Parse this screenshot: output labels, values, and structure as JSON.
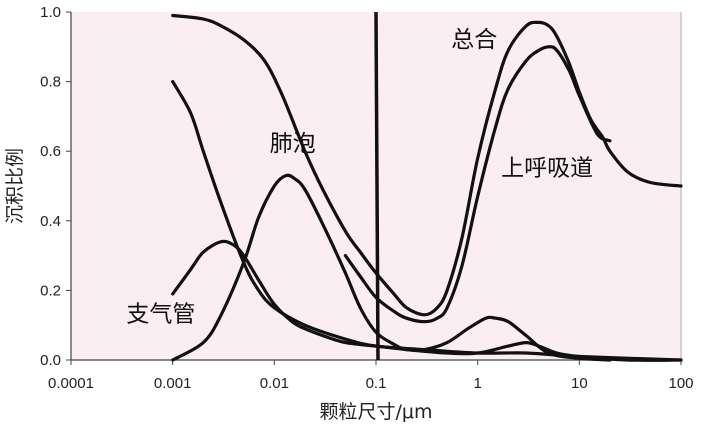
{
  "chart_data": {
    "type": "line",
    "xscale": "log",
    "xlabel": "颗粒尺寸/μm",
    "ylabel": "沉积比例",
    "xlim": [
      0.0001,
      100
    ],
    "ylim": [
      0,
      1.0
    ],
    "xticks": [
      "0.0001",
      "0.001",
      "0.01",
      "0.1",
      "1",
      "10",
      "100"
    ],
    "yticks": [
      "0.0",
      "0.2",
      "0.4",
      "0.6",
      "0.8",
      "1.0"
    ],
    "grid": false,
    "reference_line_x": 0.1,
    "background": "#fbeef2",
    "series": [
      {
        "name": "总合",
        "points": [
          [
            0.001,
            0.99
          ],
          [
            0.002,
            0.98
          ],
          [
            0.003,
            0.96
          ],
          [
            0.005,
            0.92
          ],
          [
            0.008,
            0.86
          ],
          [
            0.012,
            0.76
          ],
          [
            0.02,
            0.6
          ],
          [
            0.03,
            0.49
          ],
          [
            0.05,
            0.37
          ],
          [
            0.07,
            0.31
          ],
          [
            0.1,
            0.25
          ],
          [
            0.15,
            0.19
          ],
          [
            0.2,
            0.15
          ],
          [
            0.3,
            0.13
          ],
          [
            0.4,
            0.15
          ],
          [
            0.5,
            0.2
          ],
          [
            0.7,
            0.35
          ],
          [
            1.0,
            0.58
          ],
          [
            1.5,
            0.78
          ],
          [
            2.0,
            0.89
          ],
          [
            3.0,
            0.96
          ],
          [
            4.0,
            0.97
          ],
          [
            5.0,
            0.96
          ],
          [
            6.0,
            0.93
          ],
          [
            8.0,
            0.85
          ],
          [
            10.0,
            0.77
          ],
          [
            13.0,
            0.69
          ],
          [
            17.0,
            0.64
          ],
          [
            20.0,
            0.6
          ],
          [
            30.0,
            0.54
          ],
          [
            50.0,
            0.51
          ],
          [
            100.0,
            0.5
          ]
        ]
      },
      {
        "name": "上呼吸道",
        "points": [
          [
            0.05,
            0.3
          ],
          [
            0.07,
            0.24
          ],
          [
            0.1,
            0.18
          ],
          [
            0.15,
            0.14
          ],
          [
            0.2,
            0.12
          ],
          [
            0.3,
            0.11
          ],
          [
            0.4,
            0.12
          ],
          [
            0.5,
            0.15
          ],
          [
            0.7,
            0.27
          ],
          [
            1.0,
            0.47
          ],
          [
            1.5,
            0.67
          ],
          [
            2.0,
            0.78
          ],
          [
            3.0,
            0.86
          ],
          [
            4.0,
            0.89
          ],
          [
            5.0,
            0.9
          ],
          [
            6.0,
            0.89
          ],
          [
            8.0,
            0.83
          ],
          [
            10.0,
            0.76
          ],
          [
            15.0,
            0.65
          ],
          [
            20.0,
            0.63
          ]
        ]
      },
      {
        "name": "肺泡",
        "points": [
          [
            0.001,
            0.0
          ],
          [
            0.002,
            0.05
          ],
          [
            0.003,
            0.13
          ],
          [
            0.005,
            0.28
          ],
          [
            0.007,
            0.41
          ],
          [
            0.01,
            0.5
          ],
          [
            0.013,
            0.53
          ],
          [
            0.016,
            0.52
          ],
          [
            0.02,
            0.49
          ],
          [
            0.03,
            0.39
          ],
          [
            0.05,
            0.25
          ],
          [
            0.07,
            0.15
          ],
          [
            0.1,
            0.08
          ],
          [
            0.15,
            0.045
          ],
          [
            0.2,
            0.03
          ],
          [
            0.3,
            0.03
          ],
          [
            0.5,
            0.05
          ],
          [
            0.8,
            0.09
          ],
          [
            1.2,
            0.12
          ],
          [
            1.5,
            0.12
          ],
          [
            2.0,
            0.11
          ],
          [
            3.0,
            0.07
          ],
          [
            5.0,
            0.02
          ],
          [
            10.0,
            0.005
          ],
          [
            20.0,
            0.0
          ]
        ]
      },
      {
        "name": "支气管",
        "points": [
          [
            0.001,
            0.19
          ],
          [
            0.0015,
            0.26
          ],
          [
            0.002,
            0.31
          ],
          [
            0.003,
            0.34
          ],
          [
            0.004,
            0.33
          ],
          [
            0.005,
            0.3
          ],
          [
            0.007,
            0.23
          ],
          [
            0.01,
            0.16
          ],
          [
            0.015,
            0.11
          ],
          [
            0.02,
            0.09
          ],
          [
            0.03,
            0.07
          ],
          [
            0.05,
            0.05
          ],
          [
            0.1,
            0.04
          ],
          [
            0.2,
            0.03
          ],
          [
            0.5,
            0.02
          ],
          [
            1.0,
            0.02
          ],
          [
            2.0,
            0.04
          ],
          [
            3.0,
            0.05
          ],
          [
            4.0,
            0.04
          ],
          [
            6.0,
            0.02
          ],
          [
            10.0,
            0.01
          ],
          [
            30.0,
            0.0
          ],
          [
            100.0,
            0.0
          ]
        ]
      },
      {
        "name": "",
        "points": [
          [
            0.001,
            0.8
          ],
          [
            0.0015,
            0.71
          ],
          [
            0.002,
            0.6
          ],
          [
            0.003,
            0.45
          ],
          [
            0.005,
            0.28
          ],
          [
            0.007,
            0.2
          ],
          [
            0.01,
            0.15
          ],
          [
            0.02,
            0.1
          ],
          [
            0.05,
            0.06
          ],
          [
            0.1,
            0.04
          ],
          [
            0.3,
            0.03
          ],
          [
            1.0,
            0.02
          ],
          [
            3.0,
            0.02
          ],
          [
            10.0,
            0.01
          ],
          [
            100.0,
            0.0
          ]
        ]
      }
    ],
    "labels": [
      {
        "text": "总合",
        "x": 0.55,
        "y": 0.9
      },
      {
        "text": "上呼吸道",
        "x": 1.7,
        "y": 0.53
      },
      {
        "text": "肺泡",
        "x": 0.009,
        "y": 0.6
      },
      {
        "text": "支气管",
        "x": 0.00035,
        "y": 0.11
      }
    ]
  }
}
